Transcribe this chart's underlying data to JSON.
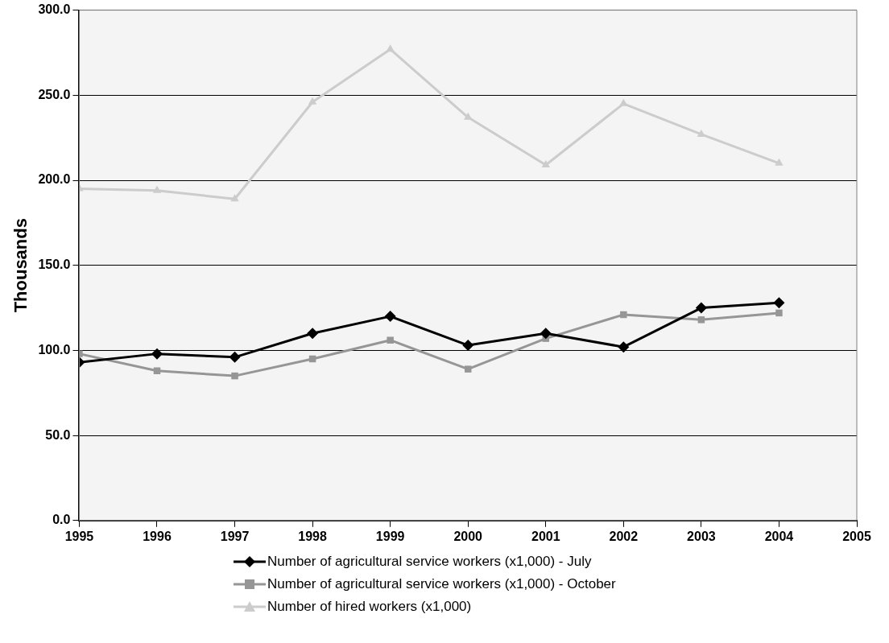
{
  "chart_data": {
    "type": "line",
    "ylabel": "Thousands",
    "x": [
      1995,
      1996,
      1997,
      1998,
      1999,
      2000,
      2001,
      2002,
      2003,
      2004
    ],
    "xlim": [
      1995,
      2005
    ],
    "xticks": [
      1995,
      1996,
      1997,
      1998,
      1999,
      2000,
      2001,
      2002,
      2003,
      2004,
      2005
    ],
    "ylim": [
      0,
      300
    ],
    "yticks": [
      {
        "value": 0,
        "label": "0.0"
      },
      {
        "value": 50,
        "label": "50.0"
      },
      {
        "value": 100,
        "label": "100.0"
      },
      {
        "value": 150,
        "label": "150.0"
      },
      {
        "value": 200,
        "label": "200.0"
      },
      {
        "value": 250,
        "label": "250.0"
      },
      {
        "value": 300,
        "label": "300.0"
      }
    ],
    "grid": "y",
    "legend": "bottom",
    "line_style": "solid",
    "series": [
      {
        "name": "Number of agricultural service workers (x1,000) - July",
        "color": "#000000",
        "marker": "diamond",
        "values": [
          93,
          98,
          96,
          110,
          120,
          103,
          110,
          102,
          125,
          128
        ]
      },
      {
        "name": "Number of agricultural service workers (x1,000) - October",
        "color": "#969696",
        "marker": "square",
        "values": [
          98,
          88,
          85,
          95,
          106,
          89,
          107,
          121,
          118,
          122
        ]
      },
      {
        "name": "Number of hired workers (x1,000)",
        "color": "#cccccc",
        "marker": "triangle",
        "values": [
          195,
          194,
          189,
          246,
          277,
          237,
          209,
          245,
          227,
          210
        ]
      }
    ]
  }
}
